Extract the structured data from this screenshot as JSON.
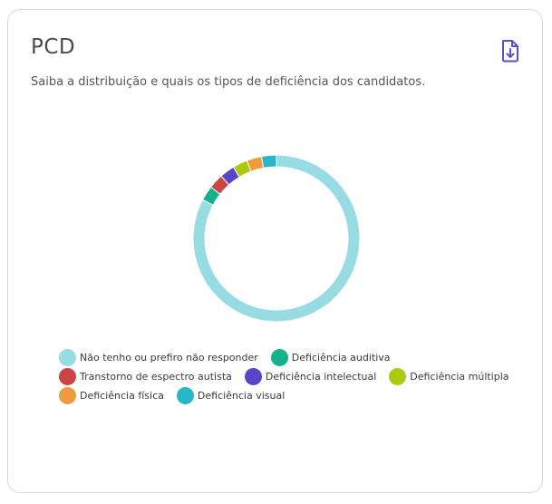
{
  "card": {
    "title": "PCD",
    "subtitle": "Saiba a distribuição e quais os tipos de deficiência dos candidatos.",
    "download_icon": "file-download-icon",
    "accent_color": "#5b4ec7"
  },
  "chart_data": {
    "type": "pie",
    "variant": "donut",
    "title": "",
    "legend_position": "bottom",
    "categories": [
      "Não tenho ou prefiro não responder",
      "Deficiência auditiva",
      "Transtorno de espectro autista",
      "Deficiência intelectual",
      "Deficiência múltipla",
      "Deficiência física",
      "Deficiência visual"
    ],
    "values": [
      86,
      3,
      3,
      3,
      3,
      3,
      3
    ],
    "colors": [
      "#97dbe3",
      "#12b38b",
      "#cc4444",
      "#5a44c7",
      "#a9cc12",
      "#ee9c3e",
      "#28b7c7"
    ]
  },
  "legend_rows": [
    [
      0,
      1
    ],
    [
      2,
      3,
      4
    ],
    [
      5,
      6
    ]
  ]
}
